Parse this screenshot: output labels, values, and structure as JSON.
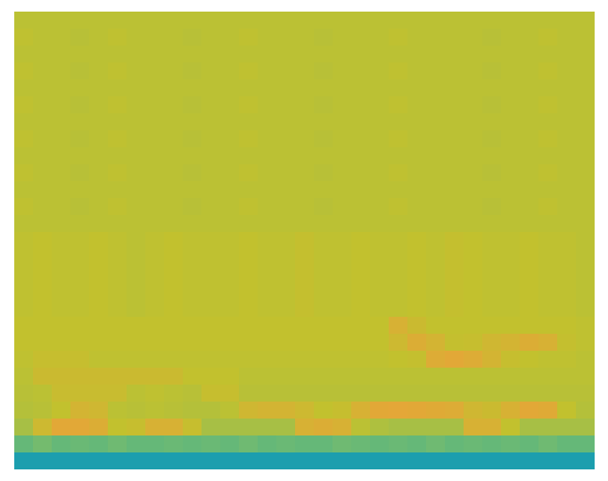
{
  "chart_data": {
    "type": "heatmap",
    "tick_labels": false,
    "zlim": [
      0,
      1
    ],
    "cells": [
      [
        0.78,
        0.78,
        0.78,
        0.78,
        0.78,
        0.78,
        0.78,
        0.78,
        0.78,
        0.78,
        0.78,
        0.78,
        0.78,
        0.78,
        0.78,
        0.78,
        0.78,
        0.78,
        0.78,
        0.78,
        0.78,
        0.78,
        0.78,
        0.78,
        0.78,
        0.78,
        0.78,
        0.78,
        0.78,
        0.78,
        0.78
      ],
      [
        0.79,
        0.78,
        0.78,
        0.77,
        0.78,
        0.79,
        0.78,
        0.78,
        0.78,
        0.77,
        0.78,
        0.78,
        0.79,
        0.78,
        0.78,
        0.78,
        0.77,
        0.78,
        0.78,
        0.78,
        0.79,
        0.78,
        0.78,
        0.78,
        0.78,
        0.77,
        0.78,
        0.78,
        0.79,
        0.78,
        0.78
      ],
      [
        0.78,
        0.78,
        0.78,
        0.78,
        0.78,
        0.78,
        0.78,
        0.78,
        0.78,
        0.78,
        0.78,
        0.78,
        0.78,
        0.78,
        0.78,
        0.78,
        0.78,
        0.78,
        0.78,
        0.78,
        0.78,
        0.78,
        0.78,
        0.78,
        0.78,
        0.78,
        0.78,
        0.78,
        0.78,
        0.78,
        0.78
      ],
      [
        0.79,
        0.78,
        0.78,
        0.77,
        0.78,
        0.79,
        0.78,
        0.78,
        0.78,
        0.77,
        0.78,
        0.78,
        0.79,
        0.78,
        0.78,
        0.78,
        0.77,
        0.78,
        0.78,
        0.78,
        0.79,
        0.78,
        0.78,
        0.78,
        0.78,
        0.77,
        0.78,
        0.78,
        0.79,
        0.78,
        0.78
      ],
      [
        0.78,
        0.78,
        0.78,
        0.78,
        0.78,
        0.78,
        0.78,
        0.78,
        0.78,
        0.78,
        0.78,
        0.78,
        0.78,
        0.78,
        0.78,
        0.78,
        0.78,
        0.78,
        0.78,
        0.78,
        0.78,
        0.78,
        0.78,
        0.78,
        0.78,
        0.78,
        0.78,
        0.78,
        0.78,
        0.78,
        0.78
      ],
      [
        0.79,
        0.78,
        0.78,
        0.77,
        0.78,
        0.79,
        0.78,
        0.78,
        0.78,
        0.77,
        0.78,
        0.78,
        0.79,
        0.78,
        0.78,
        0.78,
        0.77,
        0.78,
        0.78,
        0.78,
        0.79,
        0.78,
        0.78,
        0.78,
        0.78,
        0.77,
        0.78,
        0.78,
        0.79,
        0.78,
        0.78
      ],
      [
        0.78,
        0.78,
        0.78,
        0.78,
        0.78,
        0.78,
        0.78,
        0.78,
        0.78,
        0.78,
        0.78,
        0.78,
        0.78,
        0.78,
        0.78,
        0.78,
        0.78,
        0.78,
        0.78,
        0.78,
        0.78,
        0.78,
        0.78,
        0.78,
        0.78,
        0.78,
        0.78,
        0.78,
        0.78,
        0.78,
        0.78
      ],
      [
        0.79,
        0.78,
        0.78,
        0.77,
        0.78,
        0.79,
        0.78,
        0.78,
        0.78,
        0.77,
        0.78,
        0.78,
        0.79,
        0.78,
        0.78,
        0.78,
        0.77,
        0.78,
        0.78,
        0.78,
        0.79,
        0.78,
        0.78,
        0.78,
        0.78,
        0.77,
        0.78,
        0.78,
        0.79,
        0.78,
        0.78
      ],
      [
        0.78,
        0.78,
        0.78,
        0.78,
        0.78,
        0.78,
        0.78,
        0.78,
        0.78,
        0.78,
        0.78,
        0.78,
        0.78,
        0.78,
        0.78,
        0.78,
        0.78,
        0.78,
        0.78,
        0.78,
        0.78,
        0.78,
        0.78,
        0.78,
        0.78,
        0.78,
        0.78,
        0.78,
        0.78,
        0.78,
        0.78
      ],
      [
        0.79,
        0.78,
        0.78,
        0.77,
        0.78,
        0.79,
        0.78,
        0.78,
        0.78,
        0.77,
        0.78,
        0.78,
        0.79,
        0.78,
        0.78,
        0.78,
        0.77,
        0.78,
        0.78,
        0.78,
        0.79,
        0.78,
        0.78,
        0.78,
        0.78,
        0.77,
        0.78,
        0.78,
        0.79,
        0.78,
        0.78
      ],
      [
        0.78,
        0.78,
        0.78,
        0.78,
        0.78,
        0.78,
        0.78,
        0.78,
        0.78,
        0.78,
        0.78,
        0.78,
        0.78,
        0.78,
        0.78,
        0.78,
        0.78,
        0.78,
        0.78,
        0.78,
        0.78,
        0.78,
        0.78,
        0.78,
        0.78,
        0.78,
        0.78,
        0.78,
        0.78,
        0.78,
        0.78
      ],
      [
        0.79,
        0.78,
        0.78,
        0.77,
        0.78,
        0.79,
        0.78,
        0.78,
        0.78,
        0.77,
        0.78,
        0.78,
        0.79,
        0.78,
        0.78,
        0.78,
        0.77,
        0.78,
        0.78,
        0.78,
        0.79,
        0.78,
        0.78,
        0.78,
        0.78,
        0.77,
        0.78,
        0.78,
        0.79,
        0.78,
        0.78
      ],
      [
        0.78,
        0.78,
        0.78,
        0.78,
        0.78,
        0.78,
        0.78,
        0.78,
        0.78,
        0.78,
        0.78,
        0.78,
        0.78,
        0.78,
        0.78,
        0.78,
        0.78,
        0.78,
        0.78,
        0.78,
        0.78,
        0.78,
        0.78,
        0.78,
        0.78,
        0.78,
        0.78,
        0.78,
        0.78,
        0.78,
        0.78
      ],
      [
        0.79,
        0.8,
        0.79,
        0.79,
        0.8,
        0.79,
        0.78,
        0.79,
        0.8,
        0.79,
        0.79,
        0.79,
        0.8,
        0.79,
        0.79,
        0.81,
        0.79,
        0.79,
        0.8,
        0.79,
        0.79,
        0.8,
        0.79,
        0.81,
        0.8,
        0.79,
        0.79,
        0.8,
        0.79,
        0.79,
        0.78
      ],
      [
        0.79,
        0.8,
        0.79,
        0.79,
        0.8,
        0.79,
        0.78,
        0.79,
        0.8,
        0.79,
        0.79,
        0.79,
        0.8,
        0.79,
        0.79,
        0.81,
        0.79,
        0.79,
        0.8,
        0.79,
        0.79,
        0.8,
        0.79,
        0.81,
        0.8,
        0.79,
        0.79,
        0.8,
        0.79,
        0.79,
        0.78
      ],
      [
        0.79,
        0.8,
        0.79,
        0.79,
        0.8,
        0.79,
        0.78,
        0.79,
        0.8,
        0.79,
        0.79,
        0.79,
        0.8,
        0.79,
        0.79,
        0.81,
        0.79,
        0.79,
        0.8,
        0.79,
        0.79,
        0.8,
        0.79,
        0.81,
        0.8,
        0.79,
        0.79,
        0.8,
        0.79,
        0.79,
        0.78
      ],
      [
        0.79,
        0.8,
        0.79,
        0.79,
        0.8,
        0.79,
        0.78,
        0.79,
        0.8,
        0.79,
        0.79,
        0.79,
        0.8,
        0.79,
        0.79,
        0.81,
        0.79,
        0.79,
        0.8,
        0.79,
        0.79,
        0.8,
        0.79,
        0.81,
        0.8,
        0.79,
        0.79,
        0.8,
        0.79,
        0.79,
        0.78
      ],
      [
        0.79,
        0.8,
        0.79,
        0.79,
        0.8,
        0.79,
        0.78,
        0.79,
        0.8,
        0.79,
        0.79,
        0.79,
        0.8,
        0.79,
        0.79,
        0.81,
        0.79,
        0.79,
        0.8,
        0.79,
        0.79,
        0.8,
        0.79,
        0.81,
        0.8,
        0.79,
        0.79,
        0.8,
        0.79,
        0.79,
        0.78
      ],
      [
        0.8,
        0.8,
        0.8,
        0.8,
        0.8,
        0.8,
        0.8,
        0.8,
        0.8,
        0.8,
        0.8,
        0.8,
        0.8,
        0.8,
        0.8,
        0.8,
        0.8,
        0.8,
        0.8,
        0.8,
        0.9,
        0.84,
        0.8,
        0.8,
        0.8,
        0.8,
        0.8,
        0.8,
        0.8,
        0.8,
        0.79
      ],
      [
        0.8,
        0.8,
        0.8,
        0.8,
        0.8,
        0.8,
        0.8,
        0.8,
        0.8,
        0.8,
        0.8,
        0.8,
        0.8,
        0.8,
        0.8,
        0.8,
        0.8,
        0.8,
        0.8,
        0.8,
        0.85,
        0.92,
        0.88,
        0.81,
        0.82,
        0.86,
        0.88,
        0.92,
        0.9,
        0.81,
        0.79
      ],
      [
        0.79,
        0.82,
        0.82,
        0.82,
        0.79,
        0.79,
        0.79,
        0.79,
        0.79,
        0.79,
        0.79,
        0.79,
        0.79,
        0.79,
        0.79,
        0.79,
        0.79,
        0.79,
        0.79,
        0.79,
        0.8,
        0.81,
        0.93,
        0.95,
        0.93,
        0.88,
        0.82,
        0.8,
        0.79,
        0.79,
        0.78
      ],
      [
        0.78,
        0.84,
        0.84,
        0.84,
        0.84,
        0.84,
        0.84,
        0.84,
        0.84,
        0.8,
        0.8,
        0.8,
        0.78,
        0.78,
        0.78,
        0.78,
        0.78,
        0.78,
        0.78,
        0.78,
        0.78,
        0.78,
        0.78,
        0.78,
        0.78,
        0.78,
        0.78,
        0.78,
        0.78,
        0.78,
        0.78
      ],
      [
        0.77,
        0.78,
        0.83,
        0.83,
        0.83,
        0.83,
        0.78,
        0.79,
        0.78,
        0.77,
        0.82,
        0.82,
        0.77,
        0.77,
        0.77,
        0.77,
        0.77,
        0.77,
        0.77,
        0.77,
        0.77,
        0.77,
        0.77,
        0.77,
        0.77,
        0.77,
        0.77,
        0.77,
        0.77,
        0.77,
        0.77
      ],
      [
        0.76,
        0.77,
        0.8,
        0.88,
        0.86,
        0.78,
        0.77,
        0.78,
        0.77,
        0.76,
        0.76,
        0.78,
        0.86,
        0.88,
        0.88,
        0.85,
        0.8,
        0.82,
        0.9,
        0.95,
        0.96,
        0.95,
        0.94,
        0.93,
        0.86,
        0.84,
        0.9,
        0.95,
        0.94,
        0.8,
        0.76
      ],
      [
        0.72,
        0.85,
        0.95,
        0.95,
        0.92,
        0.8,
        0.82,
        0.9,
        0.9,
        0.82,
        0.72,
        0.72,
        0.72,
        0.72,
        0.72,
        0.9,
        0.92,
        0.9,
        0.78,
        0.74,
        0.72,
        0.72,
        0.72,
        0.72,
        0.9,
        0.9,
        0.8,
        0.72,
        0.72,
        0.72,
        0.72
      ],
      [
        0.55,
        0.58,
        0.55,
        0.56,
        0.55,
        0.57,
        0.55,
        0.55,
        0.56,
        0.55,
        0.56,
        0.55,
        0.57,
        0.55,
        0.56,
        0.55,
        0.55,
        0.57,
        0.56,
        0.55,
        0.56,
        0.55,
        0.57,
        0.55,
        0.56,
        0.55,
        0.56,
        0.55,
        0.57,
        0.55,
        0.55
      ],
      [
        0.35,
        0.35,
        0.35,
        0.35,
        0.35,
        0.35,
        0.35,
        0.35,
        0.35,
        0.35,
        0.35,
        0.35,
        0.35,
        0.35,
        0.35,
        0.35,
        0.35,
        0.35,
        0.35,
        0.35,
        0.35,
        0.35,
        0.35,
        0.35,
        0.35,
        0.35,
        0.35,
        0.35,
        0.35,
        0.35,
        0.35
      ]
    ]
  }
}
